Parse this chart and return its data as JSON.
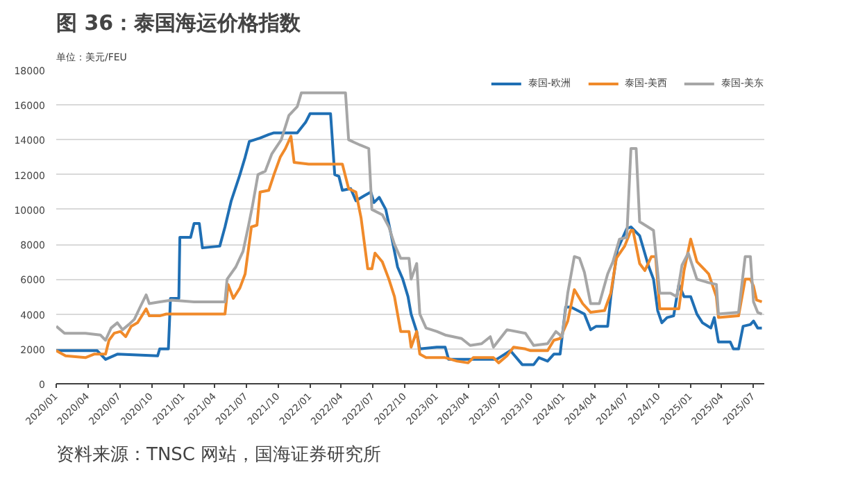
{
  "chart_data": {
    "type": "line",
    "title": "图 36：泰国海运价格指数",
    "ylabel": "单位：美元/FEU",
    "annotations": [
      "资料来源：TNSC 网站，国海证券研究所"
    ],
    "xlim": [
      "2020-01-01",
      "2025-08-01"
    ],
    "ylim": [
      0,
      18000
    ],
    "xticks": [
      {
        "value": "2020-01",
        "label": "2020/01"
      },
      {
        "value": "2020-04",
        "label": "2020/04"
      },
      {
        "value": "2020-07",
        "label": "2020/07"
      },
      {
        "value": "2020-10",
        "label": "2020/10"
      },
      {
        "value": "2021-01",
        "label": "2021/01"
      },
      {
        "value": "2021-04",
        "label": "2021/04"
      },
      {
        "value": "2021-07",
        "label": "2021/07"
      },
      {
        "value": "2021-10",
        "label": "2021/10"
      },
      {
        "value": "2022-01",
        "label": "2022/01"
      },
      {
        "value": "2022-04",
        "label": "2022/04"
      },
      {
        "value": "2022-07",
        "label": "2022/07"
      },
      {
        "value": "2022-10",
        "label": "2022/10"
      },
      {
        "value": "2023-01",
        "label": "2023/01"
      },
      {
        "value": "2023-04",
        "label": "2023/04"
      },
      {
        "value": "2023-07",
        "label": "2023/07"
      },
      {
        "value": "2023-10",
        "label": "2023/10"
      },
      {
        "value": "2024-01",
        "label": "2024/01"
      },
      {
        "value": "2024-04",
        "label": "2024/04"
      },
      {
        "value": "2024-07",
        "label": "2024/07"
      },
      {
        "value": "2024-10",
        "label": "2024/10"
      },
      {
        "value": "2025-01",
        "label": "2025/01"
      },
      {
        "value": "2025-04",
        "label": "2025/04"
      },
      {
        "value": "2025-07",
        "label": "2025/07"
      }
    ],
    "yticks": [
      0,
      2000,
      4000,
      6000,
      8000,
      10000,
      12000,
      14000,
      16000,
      18000
    ],
    "grid": "y",
    "legend": "top",
    "marker": "none",
    "line_style": "solid",
    "series": [
      {
        "name": "泰国-欧洲",
        "color": "#1f6fb4",
        "x": [
          "2020-01-01",
          "2020-04-28",
          "2020-05-22",
          "2020-06-25",
          "2020-10-19",
          "2020-10-25",
          "2020-11-19",
          "2020-11-25",
          "2020-12-19",
          "2020-12-22",
          "2021-01-22",
          "2021-02-01",
          "2021-02-16",
          "2021-02-25",
          "2021-04-16",
          "2021-05-01",
          "2021-05-19",
          "2021-06-13",
          "2021-06-28",
          "2021-07-10",
          "2021-08-10",
          "2021-09-04",
          "2021-09-19",
          "2021-11-25",
          "2021-12-19",
          "2022-01-01",
          "2022-03-01",
          "2022-03-13",
          "2022-03-25",
          "2022-04-04",
          "2022-04-28",
          "2022-05-13",
          "2022-06-07",
          "2022-06-25",
          "2022-07-04",
          "2022-07-19",
          "2022-08-07",
          "2022-08-22",
          "2022-09-10",
          "2022-09-25",
          "2022-10-10",
          "2022-10-19",
          "2022-11-04",
          "2022-11-13",
          "2023-01-01",
          "2023-01-25",
          "2023-02-04",
          "2023-04-01",
          "2023-06-22",
          "2023-08-01",
          "2023-09-04",
          "2023-10-07",
          "2023-10-22",
          "2023-11-16",
          "2023-12-04",
          "2023-12-22",
          "2024-01-07",
          "2024-01-22",
          "2024-02-01",
          "2024-03-01",
          "2024-03-19",
          "2024-04-04",
          "2024-05-07",
          "2024-05-16",
          "2024-06-04",
          "2024-07-01",
          "2024-07-13",
          "2024-08-07",
          "2024-09-01",
          "2024-09-16",
          "2024-09-28",
          "2024-10-10",
          "2024-10-25",
          "2024-11-13",
          "2024-11-28",
          "2024-12-13",
          "2025-01-01",
          "2025-01-19",
          "2025-02-04",
          "2025-02-28",
          "2025-03-10",
          "2025-03-22",
          "2025-04-25",
          "2025-05-04",
          "2025-05-19",
          "2025-06-01",
          "2025-06-22",
          "2025-07-01",
          "2025-07-13",
          "2025-07-25"
        ],
        "values": [
          1900,
          1900,
          1400,
          1700,
          1600,
          2000,
          2000,
          4900,
          4900,
          8400,
          8400,
          9200,
          9200,
          7800,
          7900,
          9000,
          10500,
          12000,
          13000,
          13900,
          14100,
          14300,
          14400,
          14400,
          15000,
          15500,
          15500,
          12000,
          11900,
          11100,
          11200,
          10500,
          10800,
          11000,
          10400,
          10700,
          10000,
          8600,
          6700,
          6000,
          5000,
          4000,
          3000,
          2000,
          2100,
          2100,
          1400,
          1400,
          1400,
          1900,
          1100,
          1100,
          1500,
          1300,
          1700,
          1700,
          4400,
          4400,
          4300,
          4000,
          3100,
          3300,
          3300,
          5000,
          7700,
          8900,
          9000,
          8500,
          6800,
          6000,
          4200,
          3500,
          3800,
          3900,
          5700,
          5000,
          5000,
          4000,
          3500,
          3200,
          3800,
          2400,
          2400,
          2000,
          2000,
          3300,
          3400,
          3600,
          3200,
          3200
        ]
      },
      {
        "name": "泰国-美西",
        "color": "#f08a2a",
        "x": [
          "2020-01-01",
          "2020-01-28",
          "2020-03-25",
          "2020-04-19",
          "2020-05-22",
          "2020-06-01",
          "2020-06-16",
          "2020-07-04",
          "2020-07-19",
          "2020-08-04",
          "2020-08-22",
          "2020-09-16",
          "2020-09-25",
          "2020-10-25",
          "2020-11-13",
          "2021-01-16",
          "2021-05-01",
          "2021-05-10",
          "2021-05-25",
          "2021-06-13",
          "2021-06-28",
          "2021-07-16",
          "2021-08-01",
          "2021-08-10",
          "2021-09-04",
          "2021-09-19",
          "2021-10-07",
          "2021-10-22",
          "2021-11-07",
          "2021-11-16",
          "2021-12-28",
          "2022-04-04",
          "2022-04-22",
          "2022-05-13",
          "2022-05-28",
          "2022-06-16",
          "2022-06-28",
          "2022-07-07",
          "2022-07-28",
          "2022-08-16",
          "2022-09-01",
          "2022-09-19",
          "2022-10-13",
          "2022-10-19",
          "2022-11-04",
          "2022-11-13",
          "2022-12-01",
          "2023-01-25",
          "2023-02-28",
          "2023-04-01",
          "2023-04-16",
          "2023-06-13",
          "2023-06-28",
          "2023-07-22",
          "2023-08-10",
          "2023-09-13",
          "2023-09-28",
          "2023-11-16",
          "2023-12-04",
          "2023-12-22",
          "2024-01-13",
          "2024-02-01",
          "2024-02-25",
          "2024-03-19",
          "2024-04-28",
          "2024-05-16",
          "2024-06-01",
          "2024-06-25",
          "2024-07-13",
          "2024-07-19",
          "2024-08-07",
          "2024-08-22",
          "2024-09-10",
          "2024-09-22",
          "2024-10-04",
          "2024-11-28",
          "2024-12-13",
          "2025-01-01",
          "2025-01-19",
          "2025-02-22",
          "2025-03-16",
          "2025-03-22",
          "2025-05-19",
          "2025-06-07",
          "2025-06-22",
          "2025-07-01",
          "2025-07-10",
          "2025-07-25"
        ],
        "values": [
          1900,
          1600,
          1500,
          1700,
          1700,
          2500,
          2900,
          3000,
          2700,
          3300,
          3500,
          4300,
          3900,
          3900,
          4000,
          4000,
          4000,
          5700,
          4900,
          5500,
          6300,
          9000,
          9100,
          11000,
          11100,
          12000,
          13000,
          13500,
          14200,
          12700,
          12600,
          12600,
          11200,
          11000,
          9500,
          6600,
          6600,
          7500,
          7000,
          6000,
          5000,
          3000,
          3000,
          2100,
          3000,
          1700,
          1500,
          1500,
          1300,
          1200,
          1500,
          1500,
          1200,
          1600,
          2100,
          2000,
          1900,
          1900,
          2500,
          2600,
          3600,
          5400,
          4600,
          4100,
          4200,
          5200,
          7200,
          7900,
          8800,
          8800,
          6900,
          6500,
          7300,
          7300,
          4300,
          4300,
          6500,
          8300,
          7000,
          6300,
          5000,
          3800,
          3900,
          6000,
          6000,
          5600,
          4800,
          4700
        ]
      },
      {
        "name": "泰国-美东",
        "color": "#a6a6a6",
        "x": [
          "2020-01-01",
          "2020-01-25",
          "2020-03-25",
          "2020-05-07",
          "2020-05-22",
          "2020-06-07",
          "2020-06-25",
          "2020-07-10",
          "2020-07-28",
          "2020-08-13",
          "2020-09-01",
          "2020-09-16",
          "2020-09-25",
          "2020-10-25",
          "2020-11-28",
          "2021-02-01",
          "2021-05-01",
          "2021-05-07",
          "2021-06-01",
          "2021-06-22",
          "2021-07-07",
          "2021-07-19",
          "2021-08-04",
          "2021-08-25",
          "2021-09-13",
          "2021-10-10",
          "2021-11-01",
          "2021-11-25",
          "2021-12-07",
          "2022-04-13",
          "2022-04-22",
          "2022-05-25",
          "2022-06-19",
          "2022-06-28",
          "2022-07-28",
          "2022-08-16",
          "2022-09-01",
          "2022-09-19",
          "2022-10-13",
          "2022-10-19",
          "2022-11-04",
          "2022-11-13",
          "2022-12-01",
          "2023-01-01",
          "2023-01-25",
          "2023-03-13",
          "2023-04-07",
          "2023-05-10",
          "2023-06-04",
          "2023-06-13",
          "2023-07-22",
          "2023-09-13",
          "2023-10-07",
          "2023-11-16",
          "2023-12-10",
          "2023-12-28",
          "2024-01-13",
          "2024-02-01",
          "2024-02-16",
          "2024-03-01",
          "2024-03-19",
          "2024-04-13",
          "2024-05-07",
          "2024-05-22",
          "2024-06-10",
          "2024-07-01",
          "2024-07-13",
          "2024-07-28",
          "2024-08-07",
          "2024-09-16",
          "2024-10-04",
          "2024-11-04",
          "2024-11-22",
          "2024-12-07",
          "2024-12-25",
          "2025-01-19",
          "2025-02-22",
          "2025-03-16",
          "2025-03-22",
          "2025-05-19",
          "2025-06-07",
          "2025-06-22",
          "2025-07-01",
          "2025-07-13",
          "2025-07-25"
        ],
        "values": [
          3300,
          2900,
          2900,
          2800,
          2500,
          3200,
          3500,
          3100,
          3400,
          3700,
          4500,
          5100,
          4600,
          4700,
          4800,
          4700,
          4700,
          6000,
          6700,
          7600,
          9000,
          10200,
          12000,
          12200,
          13200,
          14000,
          15400,
          15900,
          16700,
          16700,
          14000,
          13700,
          13500,
          10000,
          9700,
          9000,
          8000,
          7200,
          7200,
          6000,
          6900,
          4000,
          3200,
          3000,
          2800,
          2600,
          2200,
          2300,
          2700,
          2100,
          3100,
          2900,
          2200,
          2300,
          3000,
          2700,
          5200,
          7300,
          7200,
          6400,
          4600,
          4600,
          6300,
          7000,
          8300,
          8400,
          13500,
          13500,
          9300,
          8800,
          5200,
          5200,
          5000,
          6800,
          7500,
          6000,
          5800,
          5700,
          4000,
          4100,
          7300,
          7300,
          4700,
          4100,
          4000
        ]
      }
    ]
  }
}
